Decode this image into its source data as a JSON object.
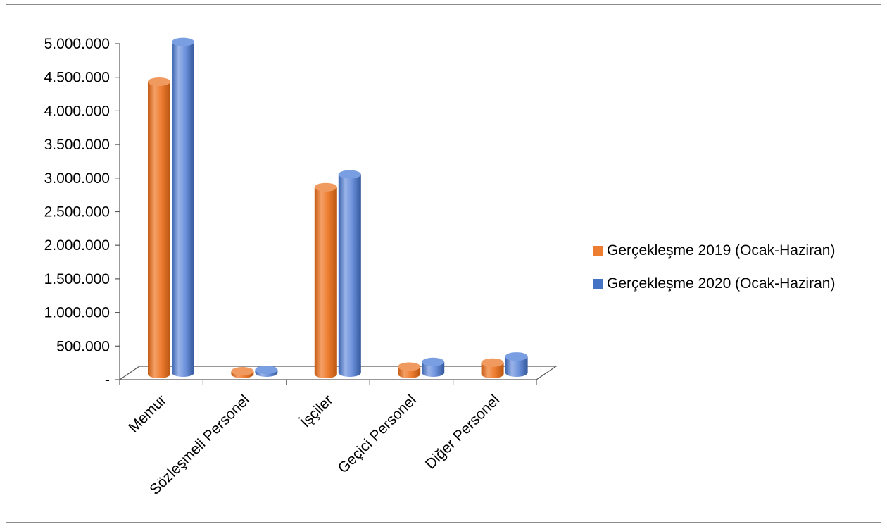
{
  "chart_data": {
    "type": "bar",
    "categories": [
      "Memur",
      "Sözleşmeli Personel",
      "İşçiler",
      "Geçici Personel",
      "Diğer Personel"
    ],
    "series": [
      {
        "name": "Gerçekleşme 2019 (Ocak-Haziran)",
        "color": "#ED7D31",
        "values": [
          4350000,
          30000,
          2780000,
          110000,
          170000
        ]
      },
      {
        "name": "Gerçekleşme 2020 (Ocak-Haziran)",
        "color": "#4472C4",
        "values": [
          4920000,
          40000,
          2950000,
          160000,
          240000
        ]
      }
    ],
    "y_ticks": [
      "-",
      "500.000",
      "1.000.000",
      "1.500.000",
      "2.000.000",
      "2.500.000",
      "3.000.000",
      "3.500.000",
      "4.000.000",
      "4.500.000",
      "5.000.000"
    ],
    "ylim": [
      0,
      5000000
    ],
    "grid": false,
    "legend_position": "right",
    "style": "3d-cylinder"
  }
}
